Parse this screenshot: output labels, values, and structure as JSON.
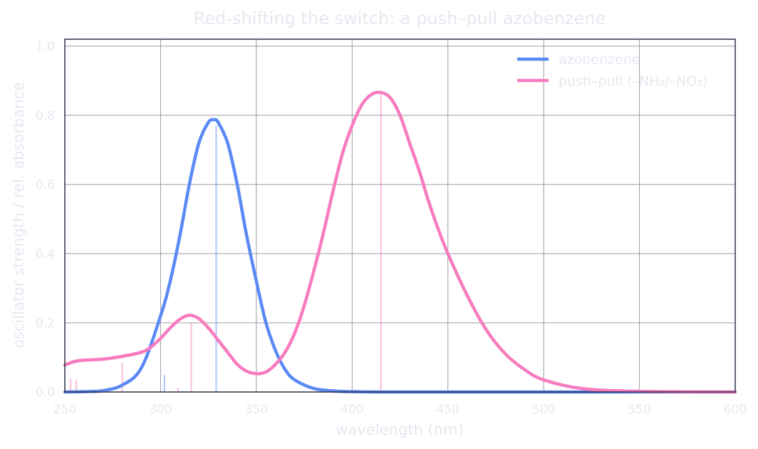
{
  "chart_data": {
    "type": "line",
    "title": "Red-shifting the switch: a push–pull azobenzene",
    "xlabel": "wavelength  (nm)",
    "ylabel": "oscillator strength  /  rel. absorbance",
    "xlim": [
      250,
      600
    ],
    "ylim": [
      0,
      1.02
    ],
    "xticks": [
      250,
      300,
      350,
      400,
      450,
      500,
      550,
      600
    ],
    "yticks": [
      0.0,
      0.2,
      0.4,
      0.6,
      0.8,
      1.0
    ],
    "xtick_labels": [
      "250",
      "300",
      "350",
      "400",
      "450",
      "500",
      "550",
      "600"
    ],
    "ytick_labels": [
      "0.0",
      "0.2",
      "0.4",
      "0.6",
      "0.8",
      "1.0"
    ],
    "grid": true,
    "legend_position": "top-right",
    "series": [
      {
        "name": "azobenzene",
        "color": "#5b8af5",
        "x": [
          250,
          260,
          270,
          280,
          290,
          300,
          305,
          310,
          315,
          320,
          325,
          328,
          330,
          335,
          340,
          345,
          350,
          355,
          360,
          365,
          370,
          380,
          390,
          400,
          420,
          450,
          500,
          600
        ],
        "y": [
          0.0,
          0.001,
          0.004,
          0.02,
          0.07,
          0.22,
          0.32,
          0.45,
          0.6,
          0.72,
          0.78,
          0.787,
          0.78,
          0.72,
          0.6,
          0.45,
          0.32,
          0.2,
          0.12,
          0.065,
          0.035,
          0.01,
          0.003,
          0.001,
          0.0,
          0.0,
          0.0,
          0.0
        ],
        "sticks": [
          {
            "x": 302,
            "y": 0.05
          },
          {
            "x": 329,
            "y": 0.77
          }
        ]
      },
      {
        "name": "push–pull (–NH₂/–NO₂)",
        "color": "#f77bbf",
        "x": [
          250,
          255,
          260,
          270,
          280,
          290,
          295,
          300,
          305,
          310,
          315,
          320,
          325,
          330,
          335,
          340,
          345,
          350,
          355,
          360,
          365,
          370,
          375,
          380,
          385,
          390,
          395,
          400,
          405,
          410,
          415,
          420,
          425,
          430,
          435,
          440,
          445,
          450,
          460,
          470,
          480,
          490,
          500,
          520,
          550,
          600
        ],
        "y": [
          0.078,
          0.088,
          0.092,
          0.095,
          0.103,
          0.115,
          0.13,
          0.155,
          0.185,
          0.21,
          0.222,
          0.212,
          0.185,
          0.15,
          0.115,
          0.08,
          0.06,
          0.053,
          0.058,
          0.08,
          0.115,
          0.17,
          0.25,
          0.35,
          0.46,
          0.58,
          0.69,
          0.77,
          0.83,
          0.86,
          0.866,
          0.85,
          0.8,
          0.72,
          0.64,
          0.55,
          0.47,
          0.4,
          0.28,
          0.18,
          0.11,
          0.065,
          0.035,
          0.01,
          0.002,
          0.0
        ],
        "sticks": [
          {
            "x": 253,
            "y": 0.04
          },
          {
            "x": 256,
            "y": 0.035
          },
          {
            "x": 280,
            "y": 0.085
          },
          {
            "x": 309,
            "y": 0.012
          },
          {
            "x": 316,
            "y": 0.2
          },
          {
            "x": 415,
            "y": 0.86
          }
        ]
      }
    ]
  }
}
